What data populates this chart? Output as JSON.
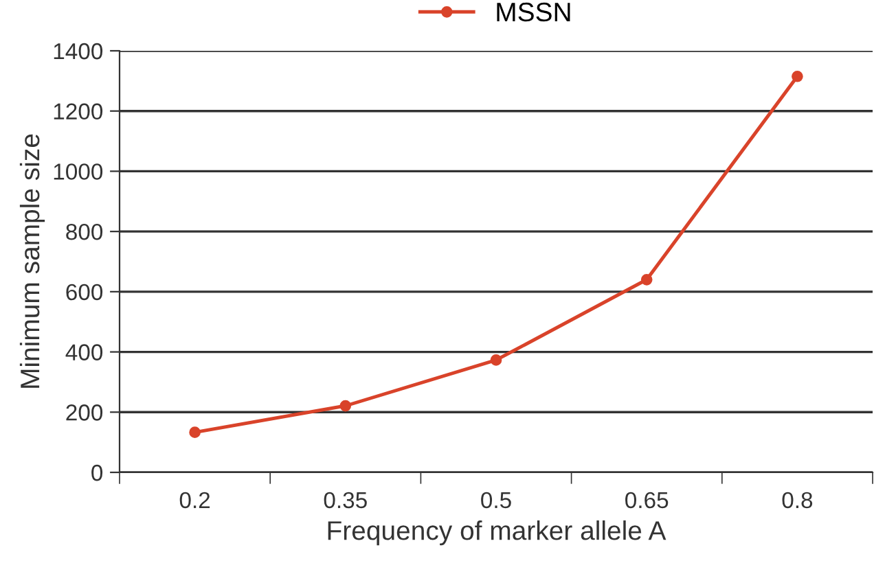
{
  "chart_data": {
    "type": "line",
    "xlabel": "Frequency of marker allele A",
    "ylabel": "Minimum sample size",
    "categories": [
      "0.2",
      "0.35",
      "0.5",
      "0.65",
      "0.8"
    ],
    "series": [
      {
        "name": "MSSN",
        "color": "#d9432a",
        "values": [
          133,
          221,
          373,
          640,
          1315
        ]
      }
    ],
    "ylim": [
      0,
      1400
    ],
    "yticks": [
      0,
      200,
      400,
      600,
      800,
      1000,
      1200,
      1400
    ],
    "grid": "y",
    "legend": "top",
    "marker": "circle",
    "line_style": "solid"
  }
}
